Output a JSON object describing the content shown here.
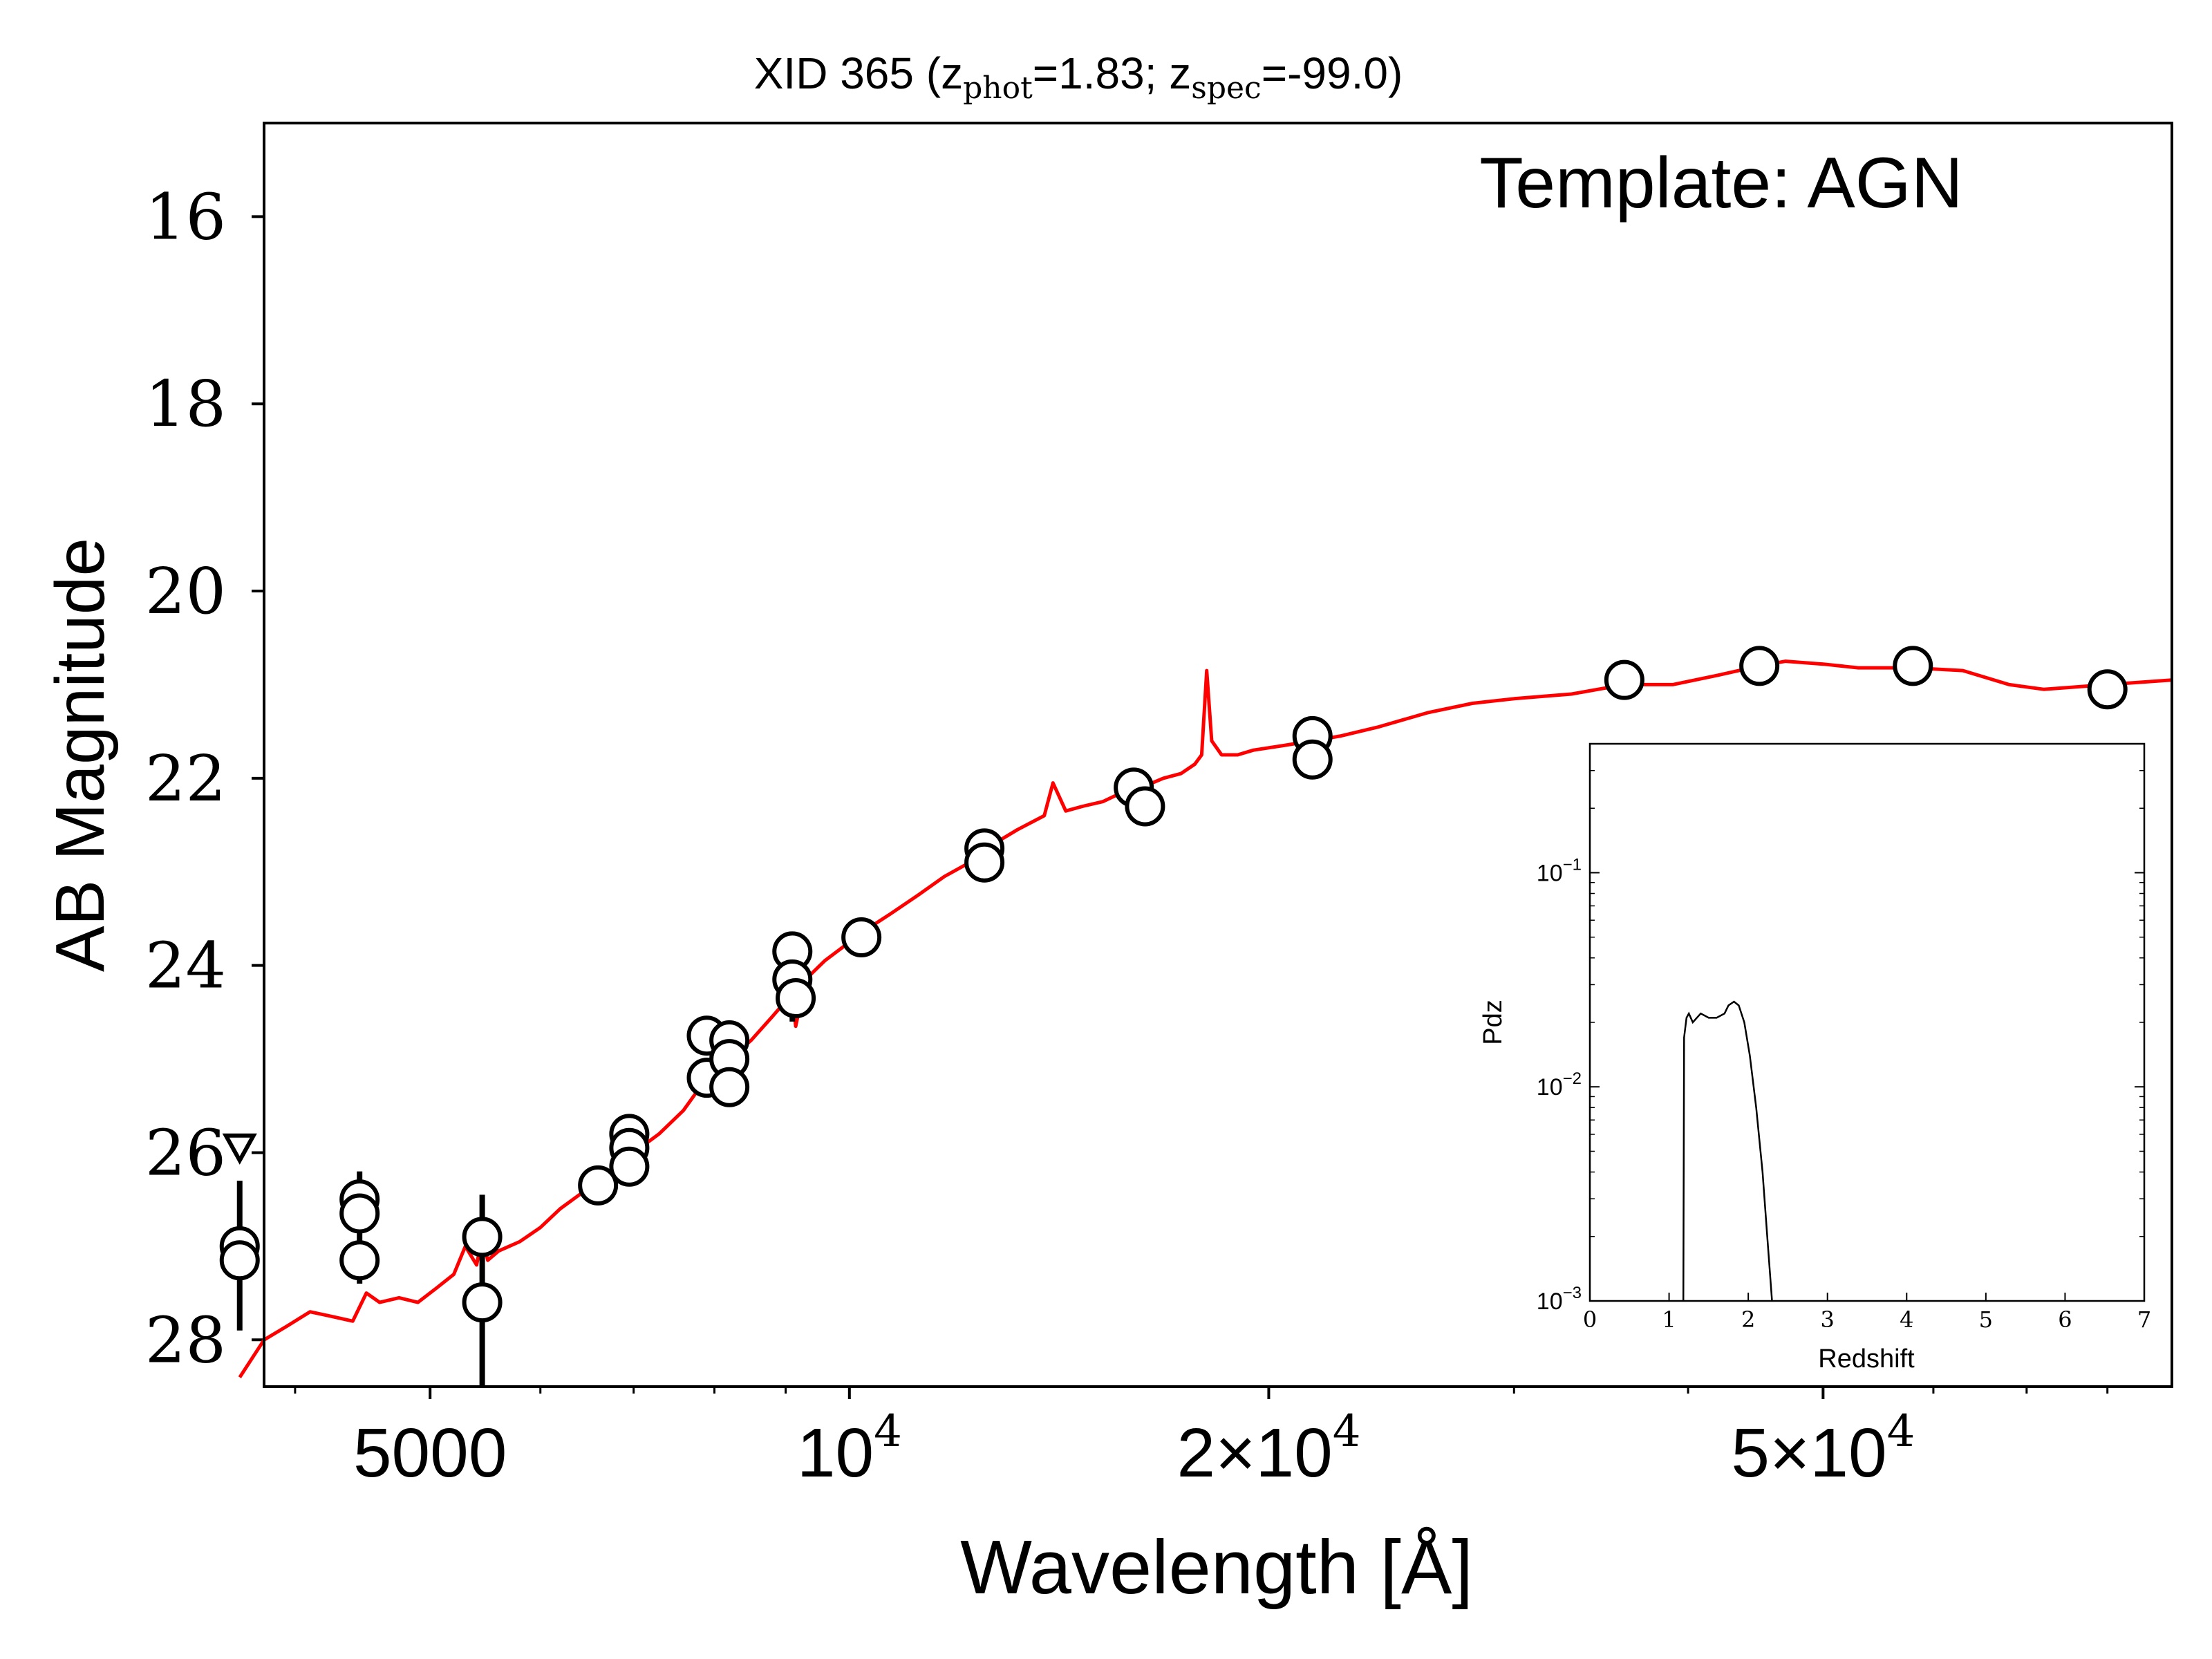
{
  "chart_data": [
    {
      "type": "scatter",
      "title": {
        "prefix": "XID 365 (z",
        "phot_sub": "phot",
        "phot_value": "=1.83; z",
        "spec_sub": "spec",
        "spec_value": "=-99.0)"
      },
      "annotation": "Template: AGN",
      "xlabel": "Wavelength [Å]",
      "ylabel": "AB Magnitude",
      "x_scale": "log",
      "xlim": [
        3800,
        89000
      ],
      "ylim": [
        28.5,
        15
      ],
      "y_inverted": true,
      "y_ticks": [
        "16",
        "18",
        "20",
        "22",
        "24",
        "26",
        "28"
      ],
      "x_ticks": [
        {
          "value": 5000,
          "base": "5000",
          "mantissa": "",
          "exp": ""
        },
        {
          "value": 10000,
          "base": "10",
          "mantissa": "",
          "exp": "4"
        },
        {
          "value": 20000,
          "base": "10",
          "mantissa": "2×",
          "exp": "4"
        },
        {
          "value": 50000,
          "base": "10",
          "mantissa": "5×",
          "exp": "4"
        }
      ],
      "colors": {
        "model": "#ff0000",
        "points": "#000000"
      },
      "series": [
        {
          "kind": "photometry",
          "points": [
            {
              "x": 3650,
              "y": 27.0,
              "err": [
                26.3,
                27.9
              ]
            },
            {
              "x": 3650,
              "y": 27.15
            },
            {
              "x": 4450,
              "y": 26.5,
              "err": [
                26.2,
                27.0
              ]
            },
            {
              "x": 4450,
              "y": 26.65
            },
            {
              "x": 4450,
              "y": 27.15,
              "err": [
                27.0,
                27.4
              ]
            },
            {
              "x": 5450,
              "y": 26.9,
              "err": [
                26.45,
                27.3
              ]
            },
            {
              "x": 5450,
              "y": 27.6,
              "err": [
                27.3,
                28.5
              ]
            },
            {
              "x": 6600,
              "y": 26.35
            },
            {
              "x": 6950,
              "y": 25.8
            },
            {
              "x": 6950,
              "y": 25.95
            },
            {
              "x": 6950,
              "y": 26.15
            },
            {
              "x": 7900,
              "y": 24.75
            },
            {
              "x": 7900,
              "y": 25.2
            },
            {
              "x": 8200,
              "y": 24.8
            },
            {
              "x": 8200,
              "y": 25.0
            },
            {
              "x": 8200,
              "y": 25.3
            },
            {
              "x": 9100,
              "y": 23.85
            },
            {
              "x": 9100,
              "y": 24.15,
              "err": [
                23.9,
                24.6
              ]
            },
            {
              "x": 9150,
              "y": 24.35
            },
            {
              "x": 10200,
              "y": 23.7
            },
            {
              "x": 12500,
              "y": 22.75
            },
            {
              "x": 12500,
              "y": 22.9
            },
            {
              "x": 16000,
              "y": 22.1
            },
            {
              "x": 16300,
              "y": 22.3
            },
            {
              "x": 21500,
              "y": 21.55
            },
            {
              "x": 21500,
              "y": 21.8
            },
            {
              "x": 36000,
              "y": 20.95
            },
            {
              "x": 45000,
              "y": 20.8
            },
            {
              "x": 58000,
              "y": 20.8
            },
            {
              "x": 80000,
              "y": 21.05
            }
          ],
          "upper_limits": [
            {
              "x": 3650,
              "y": 25.95
            }
          ]
        },
        {
          "kind": "model",
          "points": [
            [
              3650,
              28.4
            ],
            [
              3800,
              28.0
            ],
            [
              3950,
              27.85
            ],
            [
              4100,
              27.7
            ],
            [
              4250,
              27.75
            ],
            [
              4400,
              27.8
            ],
            [
              4500,
              27.5
            ],
            [
              4600,
              27.6
            ],
            [
              4750,
              27.55
            ],
            [
              4900,
              27.6
            ],
            [
              5050,
              27.45
            ],
            [
              5200,
              27.3
            ],
            [
              5300,
              27.0
            ],
            [
              5400,
              27.2
            ],
            [
              5450,
              26.9
            ],
            [
              5500,
              27.15
            ],
            [
              5600,
              27.05
            ],
            [
              5800,
              26.95
            ],
            [
              6000,
              26.8
            ],
            [
              6200,
              26.6
            ],
            [
              6400,
              26.45
            ],
            [
              6600,
              26.35
            ],
            [
              6800,
              26.15
            ],
            [
              7000,
              26.0
            ],
            [
              7300,
              25.8
            ],
            [
              7600,
              25.55
            ],
            [
              7900,
              25.2
            ],
            [
              8200,
              25.0
            ],
            [
              8500,
              24.8
            ],
            [
              8800,
              24.55
            ],
            [
              9100,
              24.3
            ],
            [
              9150,
              24.65
            ],
            [
              9300,
              24.15
            ],
            [
              9600,
              23.95
            ],
            [
              9900,
              23.8
            ],
            [
              10200,
              23.65
            ],
            [
              10700,
              23.45
            ],
            [
              11200,
              23.25
            ],
            [
              11700,
              23.05
            ],
            [
              12200,
              22.9
            ],
            [
              12700,
              22.7
            ],
            [
              13200,
              22.55
            ],
            [
              13800,
              22.4
            ],
            [
              14000,
              22.05
            ],
            [
              14300,
              22.35
            ],
            [
              14700,
              22.3
            ],
            [
              15200,
              22.25
            ],
            [
              15700,
              22.15
            ],
            [
              16200,
              22.1
            ],
            [
              16800,
              22.0
            ],
            [
              17300,
              21.95
            ],
            [
              17700,
              21.85
            ],
            [
              17900,
              21.75
            ],
            [
              18050,
              20.85
            ],
            [
              18200,
              21.6
            ],
            [
              18500,
              21.75
            ],
            [
              19000,
              21.75
            ],
            [
              19500,
              21.7
            ],
            [
              20500,
              21.65
            ],
            [
              21500,
              21.6
            ],
            [
              22500,
              21.55
            ],
            [
              24000,
              21.45
            ],
            [
              26000,
              21.3
            ],
            [
              28000,
              21.2
            ],
            [
              30000,
              21.15
            ],
            [
              33000,
              21.1
            ],
            [
              36000,
              21.0
            ],
            [
              39000,
              21.0
            ],
            [
              42000,
              20.9
            ],
            [
              45000,
              20.8
            ],
            [
              47000,
              20.75
            ],
            [
              50000,
              20.78
            ],
            [
              53000,
              20.82
            ],
            [
              58000,
              20.82
            ],
            [
              63000,
              20.85
            ],
            [
              68000,
              21.0
            ],
            [
              72000,
              21.05
            ],
            [
              80000,
              21.0
            ],
            [
              89000,
              20.95
            ]
          ]
        }
      ]
    },
    {
      "type": "line",
      "xlabel": "Redshift",
      "ylabel": "Pdz",
      "y_scale": "log",
      "xlim": [
        0,
        7
      ],
      "ylim": [
        0.001,
        0.4
      ],
      "x_ticks": [
        "0",
        "1",
        "2",
        "3",
        "4",
        "5",
        "6",
        "7"
      ],
      "y_ticks": [
        {
          "value": 0.1,
          "base": "10",
          "exp": "−1"
        },
        {
          "value": 0.01,
          "base": "10",
          "exp": "−2"
        },
        {
          "value": 0.001,
          "base": "10",
          "exp": "−3"
        }
      ],
      "series": [
        {
          "points": [
            [
              1.18,
              0.001
            ],
            [
              1.19,
              0.017
            ],
            [
              1.22,
              0.021
            ],
            [
              1.25,
              0.022
            ],
            [
              1.3,
              0.02
            ],
            [
              1.35,
              0.021
            ],
            [
              1.4,
              0.022
            ],
            [
              1.5,
              0.021
            ],
            [
              1.6,
              0.021
            ],
            [
              1.7,
              0.022
            ],
            [
              1.75,
              0.024
            ],
            [
              1.82,
              0.025
            ],
            [
              1.88,
              0.024
            ],
            [
              1.95,
              0.02
            ],
            [
              2.02,
              0.014
            ],
            [
              2.1,
              0.008
            ],
            [
              2.18,
              0.004
            ],
            [
              2.24,
              0.002
            ],
            [
              2.3,
              0.001
            ]
          ]
        }
      ]
    }
  ]
}
